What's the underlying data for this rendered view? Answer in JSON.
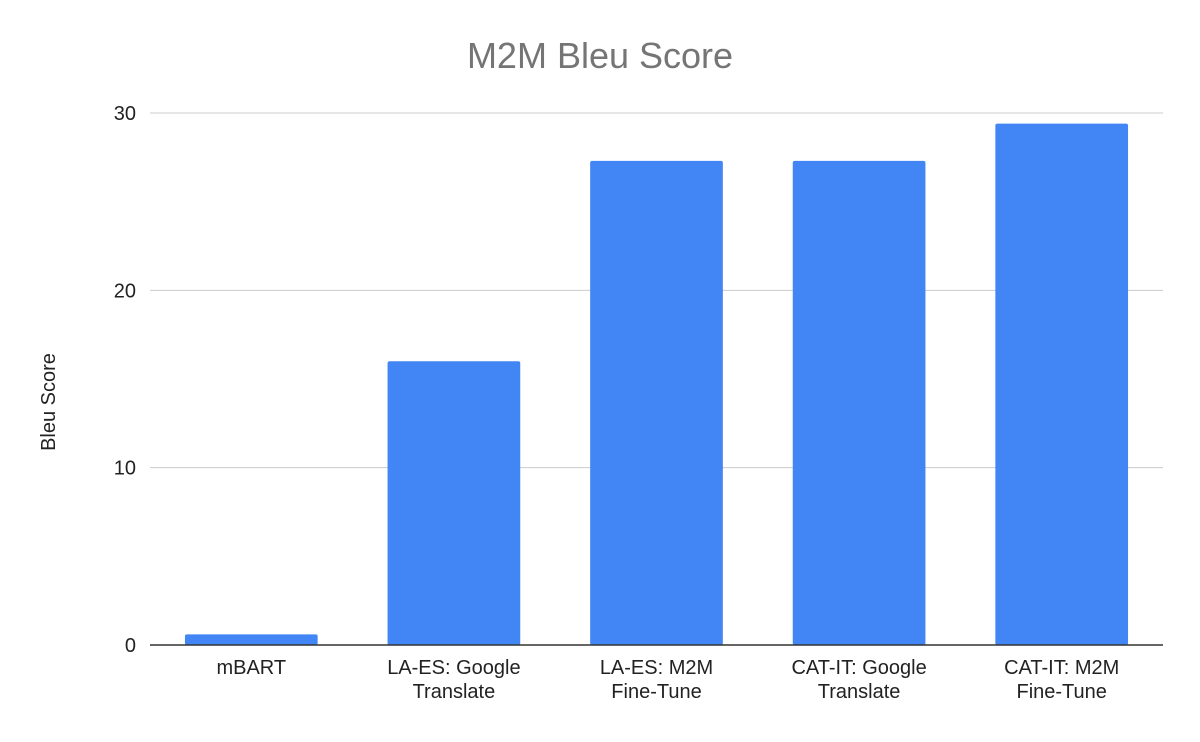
{
  "chart_data": {
    "type": "bar",
    "title": "M2M Bleu Score",
    "xlabel": "",
    "ylabel": "Bleu Score",
    "categories": [
      [
        "mBART"
      ],
      [
        "LA-ES: Google",
        "Translate"
      ],
      [
        "LA-ES: M2M",
        "Fine-Tune"
      ],
      [
        "CAT-IT: Google",
        "Translate"
      ],
      [
        "CAT-IT: M2M",
        "Fine-Tune"
      ]
    ],
    "values": [
      0.6,
      16.0,
      27.3,
      27.3,
      29.4
    ],
    "ylim": [
      0,
      30
    ],
    "yticks": [
      0,
      10,
      20,
      30
    ],
    "grid": true,
    "legend": "none",
    "bar_color": "#4285f4"
  }
}
